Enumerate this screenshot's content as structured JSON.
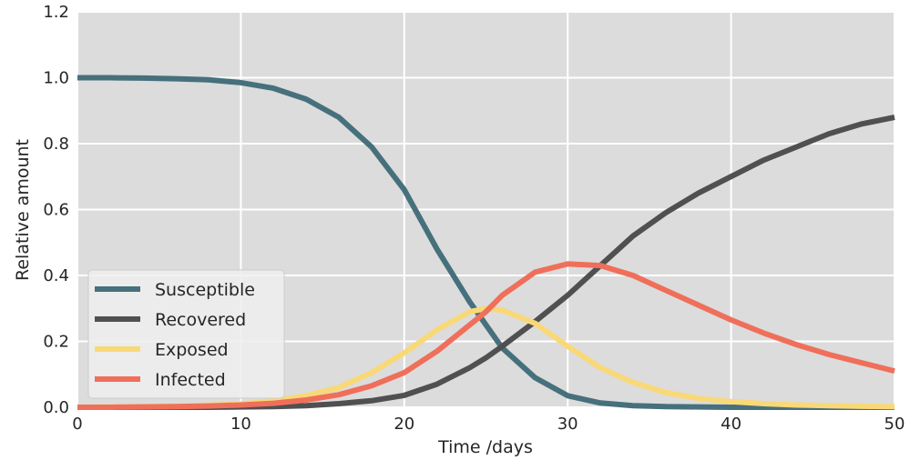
{
  "chart_data": {
    "type": "line",
    "title": "",
    "xlabel": "Time /days",
    "ylabel": "Relative amount",
    "xlim": [
      0,
      50
    ],
    "ylim": [
      0.0,
      1.2
    ],
    "xticks": [
      "0",
      "10",
      "20",
      "30",
      "40",
      "50"
    ],
    "yticks": [
      "0.0",
      "0.2",
      "0.4",
      "0.6",
      "0.8",
      "1.0",
      "1.2"
    ],
    "grid": true,
    "legend_position": "lower-left",
    "x": [
      0,
      2,
      4,
      6,
      8,
      10,
      12,
      14,
      16,
      18,
      20,
      22,
      24,
      25,
      26,
      28,
      30,
      32,
      34,
      36,
      38,
      40,
      42,
      44,
      46,
      48,
      50
    ],
    "series": [
      {
        "name": "Susceptible",
        "color": "#46707c",
        "values": [
          1.0,
          1.0,
          0.999,
          0.997,
          0.994,
          0.985,
          0.968,
          0.935,
          0.88,
          0.79,
          0.66,
          0.48,
          0.32,
          0.25,
          0.18,
          0.09,
          0.035,
          0.013,
          0.005,
          0.002,
          0.001,
          0.0,
          0.0,
          0.0,
          0.0,
          0.0,
          0.0
        ]
      },
      {
        "name": "Recovered",
        "color": "#505050",
        "values": [
          0.0,
          0.0,
          0.0,
          0.0,
          0.0,
          0.001,
          0.002,
          0.005,
          0.011,
          0.02,
          0.036,
          0.07,
          0.12,
          0.15,
          0.185,
          0.26,
          0.34,
          0.43,
          0.52,
          0.59,
          0.65,
          0.7,
          0.75,
          0.79,
          0.83,
          0.86,
          0.88
        ]
      },
      {
        "name": "Exposed",
        "color": "#f9d878",
        "values": [
          0.0,
          0.001,
          0.002,
          0.003,
          0.006,
          0.01,
          0.019,
          0.035,
          0.06,
          0.105,
          0.165,
          0.235,
          0.29,
          0.3,
          0.295,
          0.255,
          0.185,
          0.12,
          0.075,
          0.045,
          0.027,
          0.017,
          0.011,
          0.007,
          0.005,
          0.003,
          0.002
        ]
      },
      {
        "name": "Infected",
        "color": "#ef6f5a",
        "values": [
          0.0,
          0.0,
          0.001,
          0.002,
          0.004,
          0.007,
          0.012,
          0.022,
          0.038,
          0.065,
          0.105,
          0.17,
          0.25,
          0.29,
          0.34,
          0.41,
          0.435,
          0.43,
          0.4,
          0.355,
          0.31,
          0.265,
          0.225,
          0.19,
          0.16,
          0.135,
          0.11
        ]
      }
    ]
  }
}
